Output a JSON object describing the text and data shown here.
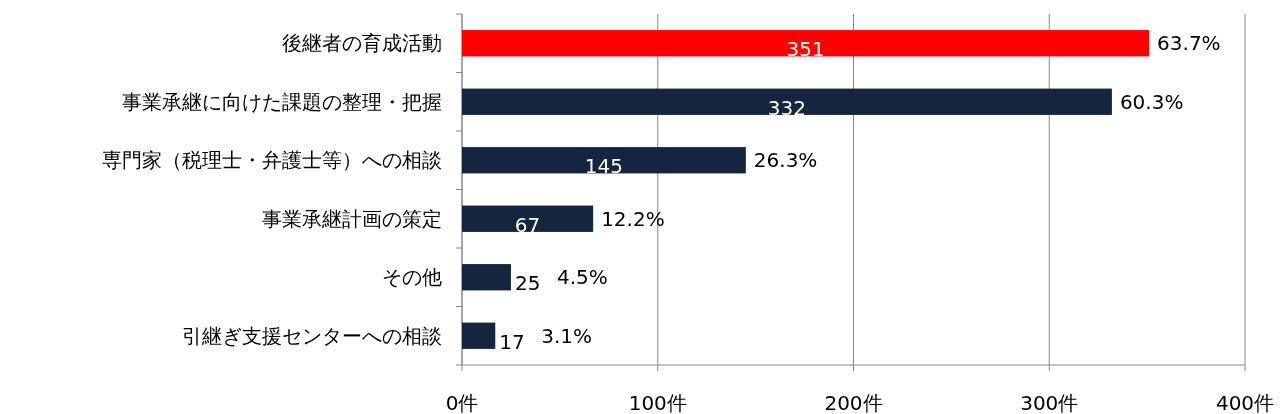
{
  "chart_data": {
    "type": "bar",
    "orientation": "horizontal",
    "categories": [
      "後継者の育成活動",
      "事業承継に向けた課題の整理・把握",
      "専門家（税理士・弁護士等）への相談",
      "事業承継計画の策定",
      "その他",
      "引継ぎ支援センターへの相談"
    ],
    "values": [
      351,
      332,
      145,
      67,
      25,
      17
    ],
    "colors": [
      "#ff0000",
      "#14253f",
      "#14253f",
      "#14253f",
      "#14253f",
      "#14253f"
    ],
    "data_labels": true,
    "xlim": [
      0,
      400
    ],
    "xticks": [
      {
        "value": 0,
        "label": "0件"
      },
      {
        "value": 100,
        "label": "100件"
      },
      {
        "value": 200,
        "label": "200件"
      },
      {
        "value": 300,
        "label": "300件"
      },
      {
        "value": 400,
        "label": "400件"
      }
    ],
    "grid": "x",
    "annotations": [
      {
        "text": "63.7%",
        "x": 351,
        "y": "後継者の育成活動"
      },
      {
        "text": "60.3%",
        "x": 332,
        "y": "事業承継に向けた課題の整理・把握"
      },
      {
        "text": "26.3%",
        "x": 145,
        "y": "専門家（税理士・弁護士等）への相談"
      },
      {
        "text": "12.2%",
        "x": 67,
        "y": "事業承継計画の策定"
      },
      {
        "text": "4.5%",
        "x": 25,
        "y": "その他"
      },
      {
        "text": "3.1%",
        "x": 17,
        "y": "引継ぎ支援センターへの相談"
      }
    ]
  }
}
